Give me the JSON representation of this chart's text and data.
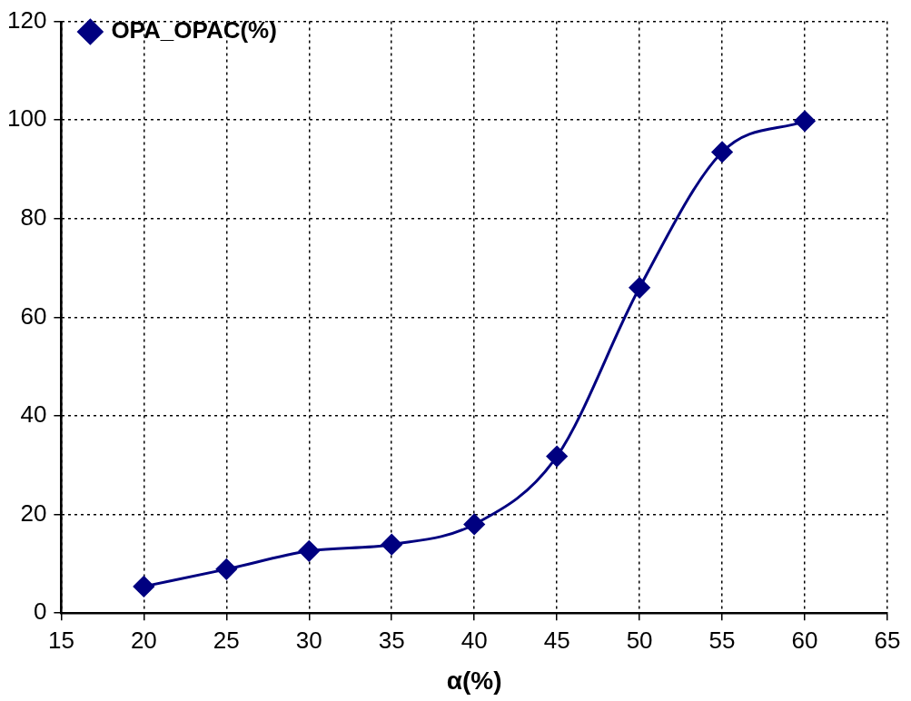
{
  "chart_data": {
    "type": "line",
    "xlabel": "α(%)",
    "x": [
      20,
      25,
      30,
      35,
      40,
      45,
      50,
      55,
      60
    ],
    "series": [
      {
        "name": "OPA_OPAC(%)",
        "color": "#000080",
        "values": [
          5.4,
          8.9,
          12.6,
          13.9,
          18.0,
          31.8,
          66.0,
          93.5,
          99.8
        ]
      }
    ],
    "xlim": [
      15,
      65
    ],
    "xticks": [
      15,
      20,
      25,
      30,
      35,
      40,
      45,
      50,
      55,
      60,
      65
    ],
    "ylim": [
      0,
      120
    ],
    "yticks": [
      0,
      20,
      40,
      60,
      80,
      100,
      120
    ],
    "grid": true,
    "legend": "top left",
    "marker": "diamond",
    "line_style": "solid"
  }
}
